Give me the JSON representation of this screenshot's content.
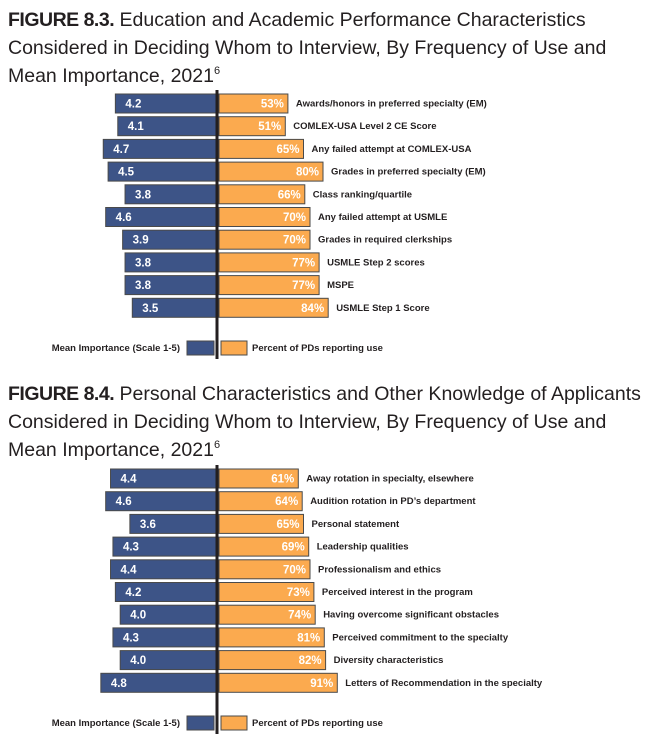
{
  "colors": {
    "importance": "#3d5487",
    "use": "#fbaa4f",
    "axis": "#231f20",
    "border": "#4a4a4a"
  },
  "chart_data": [
    {
      "type": "bar",
      "figure_label": "FIGURE 8.3.",
      "title": "Education and Academic Performance Characteristics Considered in Deciding Whom to Interview, By Frequency of Use and Mean Importance, 2021",
      "title_superscript": "6",
      "categories": [
        "Awards/honors in preferred specialty (EM)",
        "COMLEX-USA Level 2 CE Score",
        "Any failed attempt at COMLEX-USA",
        "Grades in preferred specialty (EM)",
        "Class ranking/quartile",
        "Any failed attempt at USMLE",
        "Grades in required clerkships",
        "USMLE Step 2 scores",
        "MSPE",
        "USMLE Step 1 Score"
      ],
      "series": [
        {
          "name": "Mean Importance (Scale 1-5)",
          "values": [
            4.2,
            4.1,
            4.7,
            4.5,
            3.8,
            4.6,
            3.9,
            3.8,
            3.8,
            3.5
          ],
          "labels": [
            "4.2",
            "4.1",
            "4.7",
            "4.5",
            "3.8",
            "4.6",
            "3.9",
            "3.8",
            "3.8",
            "3.5"
          ]
        },
        {
          "name": "Percent of PDs reporting use",
          "values": [
            53,
            51,
            65,
            80,
            66,
            70,
            70,
            77,
            77,
            84
          ],
          "labels": [
            "53%",
            "51%",
            "65%",
            "80%",
            "66%",
            "70%",
            "70%",
            "77%",
            "77%",
            "84%"
          ]
        }
      ],
      "legend": [
        "Mean Importance (Scale 1-5)",
        "Percent of PDs reporting use"
      ]
    },
    {
      "type": "bar",
      "figure_label": "FIGURE 8.4.",
      "title": "Personal Characteristics and Other Knowledge of Applicants Considered in Deciding Whom to Interview, By Frequency of Use and Mean Importance, 2021",
      "title_superscript": "6",
      "categories": [
        "Away rotation in specialty, elsewhere",
        "Audition rotation in PD’s department",
        "Personal statement",
        "Leadership qualities",
        "Professionalism and ethics",
        "Perceived interest in the program",
        "Having overcome significant obstacles",
        "Perceived commitment to the specialty",
        "Diversity characteristics",
        "Letters of Recommendation in the specialty"
      ],
      "series": [
        {
          "name": "Mean Importance (Scale 1-5)",
          "values": [
            4.4,
            4.6,
            3.6,
            4.3,
            4.4,
            4.2,
            4.0,
            4.3,
            4.0,
            4.8
          ],
          "labels": [
            "4.4",
            "4.6",
            "3.6",
            "4.3",
            "4.4",
            "4.2",
            "4.0",
            "4.3",
            "4.0",
            "4.8"
          ]
        },
        {
          "name": "Percent of PDs reporting use",
          "values": [
            61,
            64,
            65,
            69,
            70,
            73,
            74,
            81,
            82,
            91
          ],
          "labels": [
            "61%",
            "64%",
            "65%",
            "69%",
            "70%",
            "73%",
            "74%",
            "81%",
            "82%",
            "91%"
          ]
        }
      ],
      "legend": [
        "Mean Importance (Scale 1-5)",
        "Percent of PDs reporting use"
      ]
    }
  ]
}
